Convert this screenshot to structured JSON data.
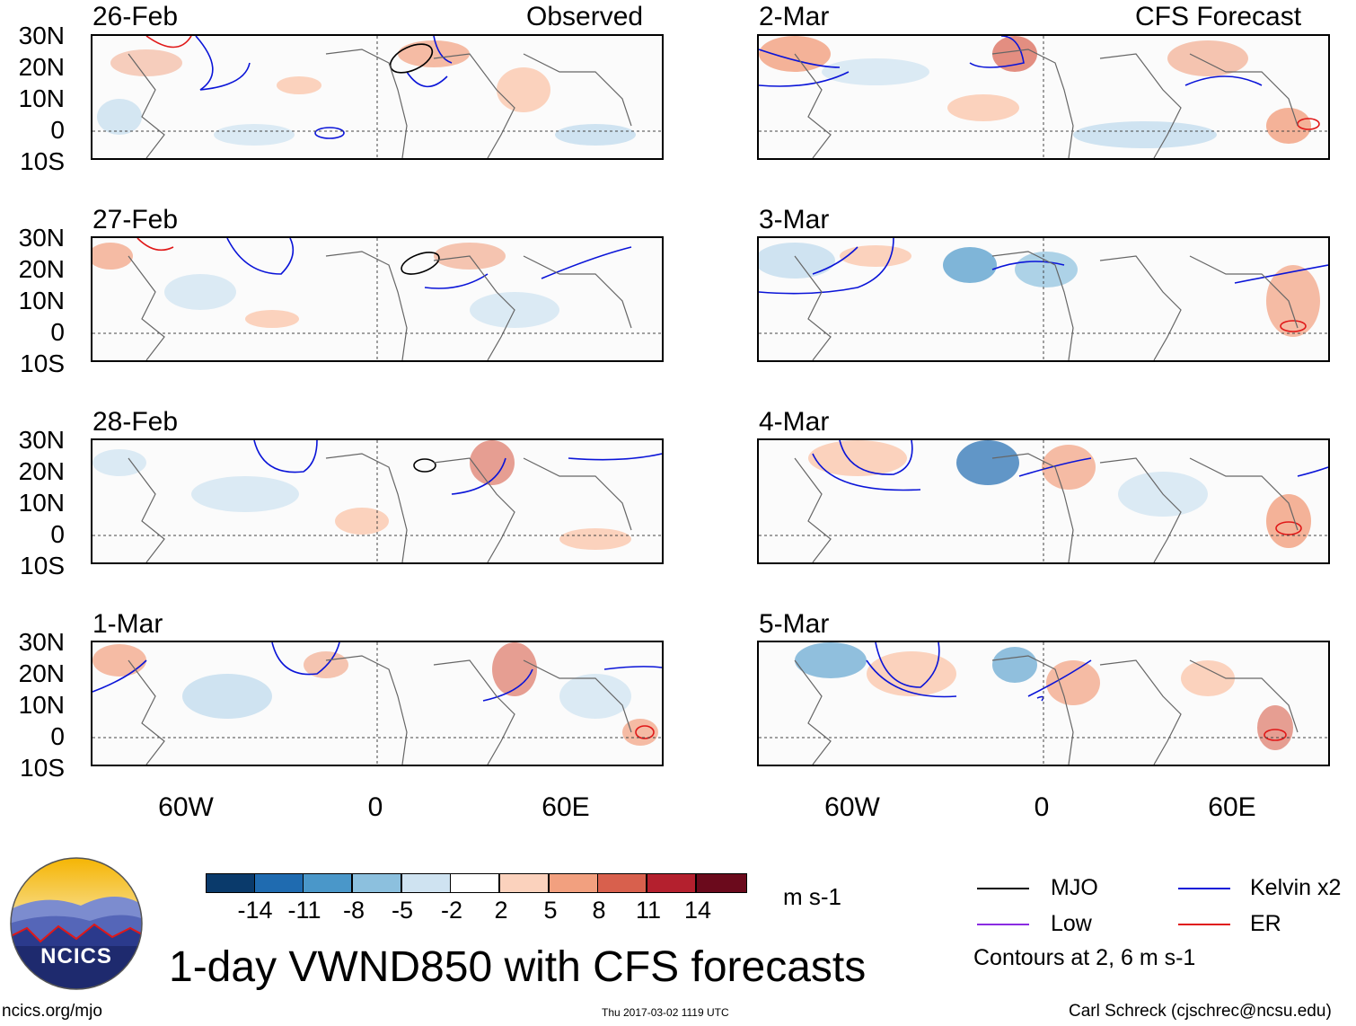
{
  "titles": {
    "observed": "Observed",
    "forecast": "CFS Forecast",
    "main": "1-day VWND850 with CFS forecasts",
    "units": "m s-1",
    "contours_note": "Contours at 2, 6 m s-1"
  },
  "observed_dates": [
    "26-Feb",
    "27-Feb",
    "28-Feb",
    "1-Mar"
  ],
  "forecast_dates": [
    "2-Mar",
    "3-Mar",
    "4-Mar",
    "5-Mar"
  ],
  "lat_labels": [
    "30N",
    "20N",
    "10N",
    "0",
    "10S"
  ],
  "lon_labels": [
    "60W",
    "0",
    "60E"
  ],
  "colorbar": {
    "labels": [
      "-14",
      "-11",
      "-8",
      "-5",
      "-2",
      "2",
      "5",
      "8",
      "11",
      "14"
    ],
    "colors": [
      "#0a3a6b",
      "#1f6bb0",
      "#4a97c9",
      "#8cc0de",
      "#cfe3f1",
      "#ffffff",
      "#fbd2bd",
      "#f2a07f",
      "#d8604d",
      "#b4202e",
      "#6b0a1c"
    ]
  },
  "legend": {
    "items": [
      {
        "label": "MJO",
        "color": "#000000"
      },
      {
        "label": "Kelvin x2",
        "color": "#0a14d8"
      },
      {
        "label": "Low",
        "color": "#8a2be2"
      },
      {
        "label": "ER",
        "color": "#e01818"
      }
    ]
  },
  "logo": {
    "text": "NCICS"
  },
  "footer": {
    "left": "ncics.org/mjo",
    "center": "Thu 2017-03-02 1119 UTC",
    "right": "Carl Schreck (cjschrec@ncsu.edu)"
  }
}
